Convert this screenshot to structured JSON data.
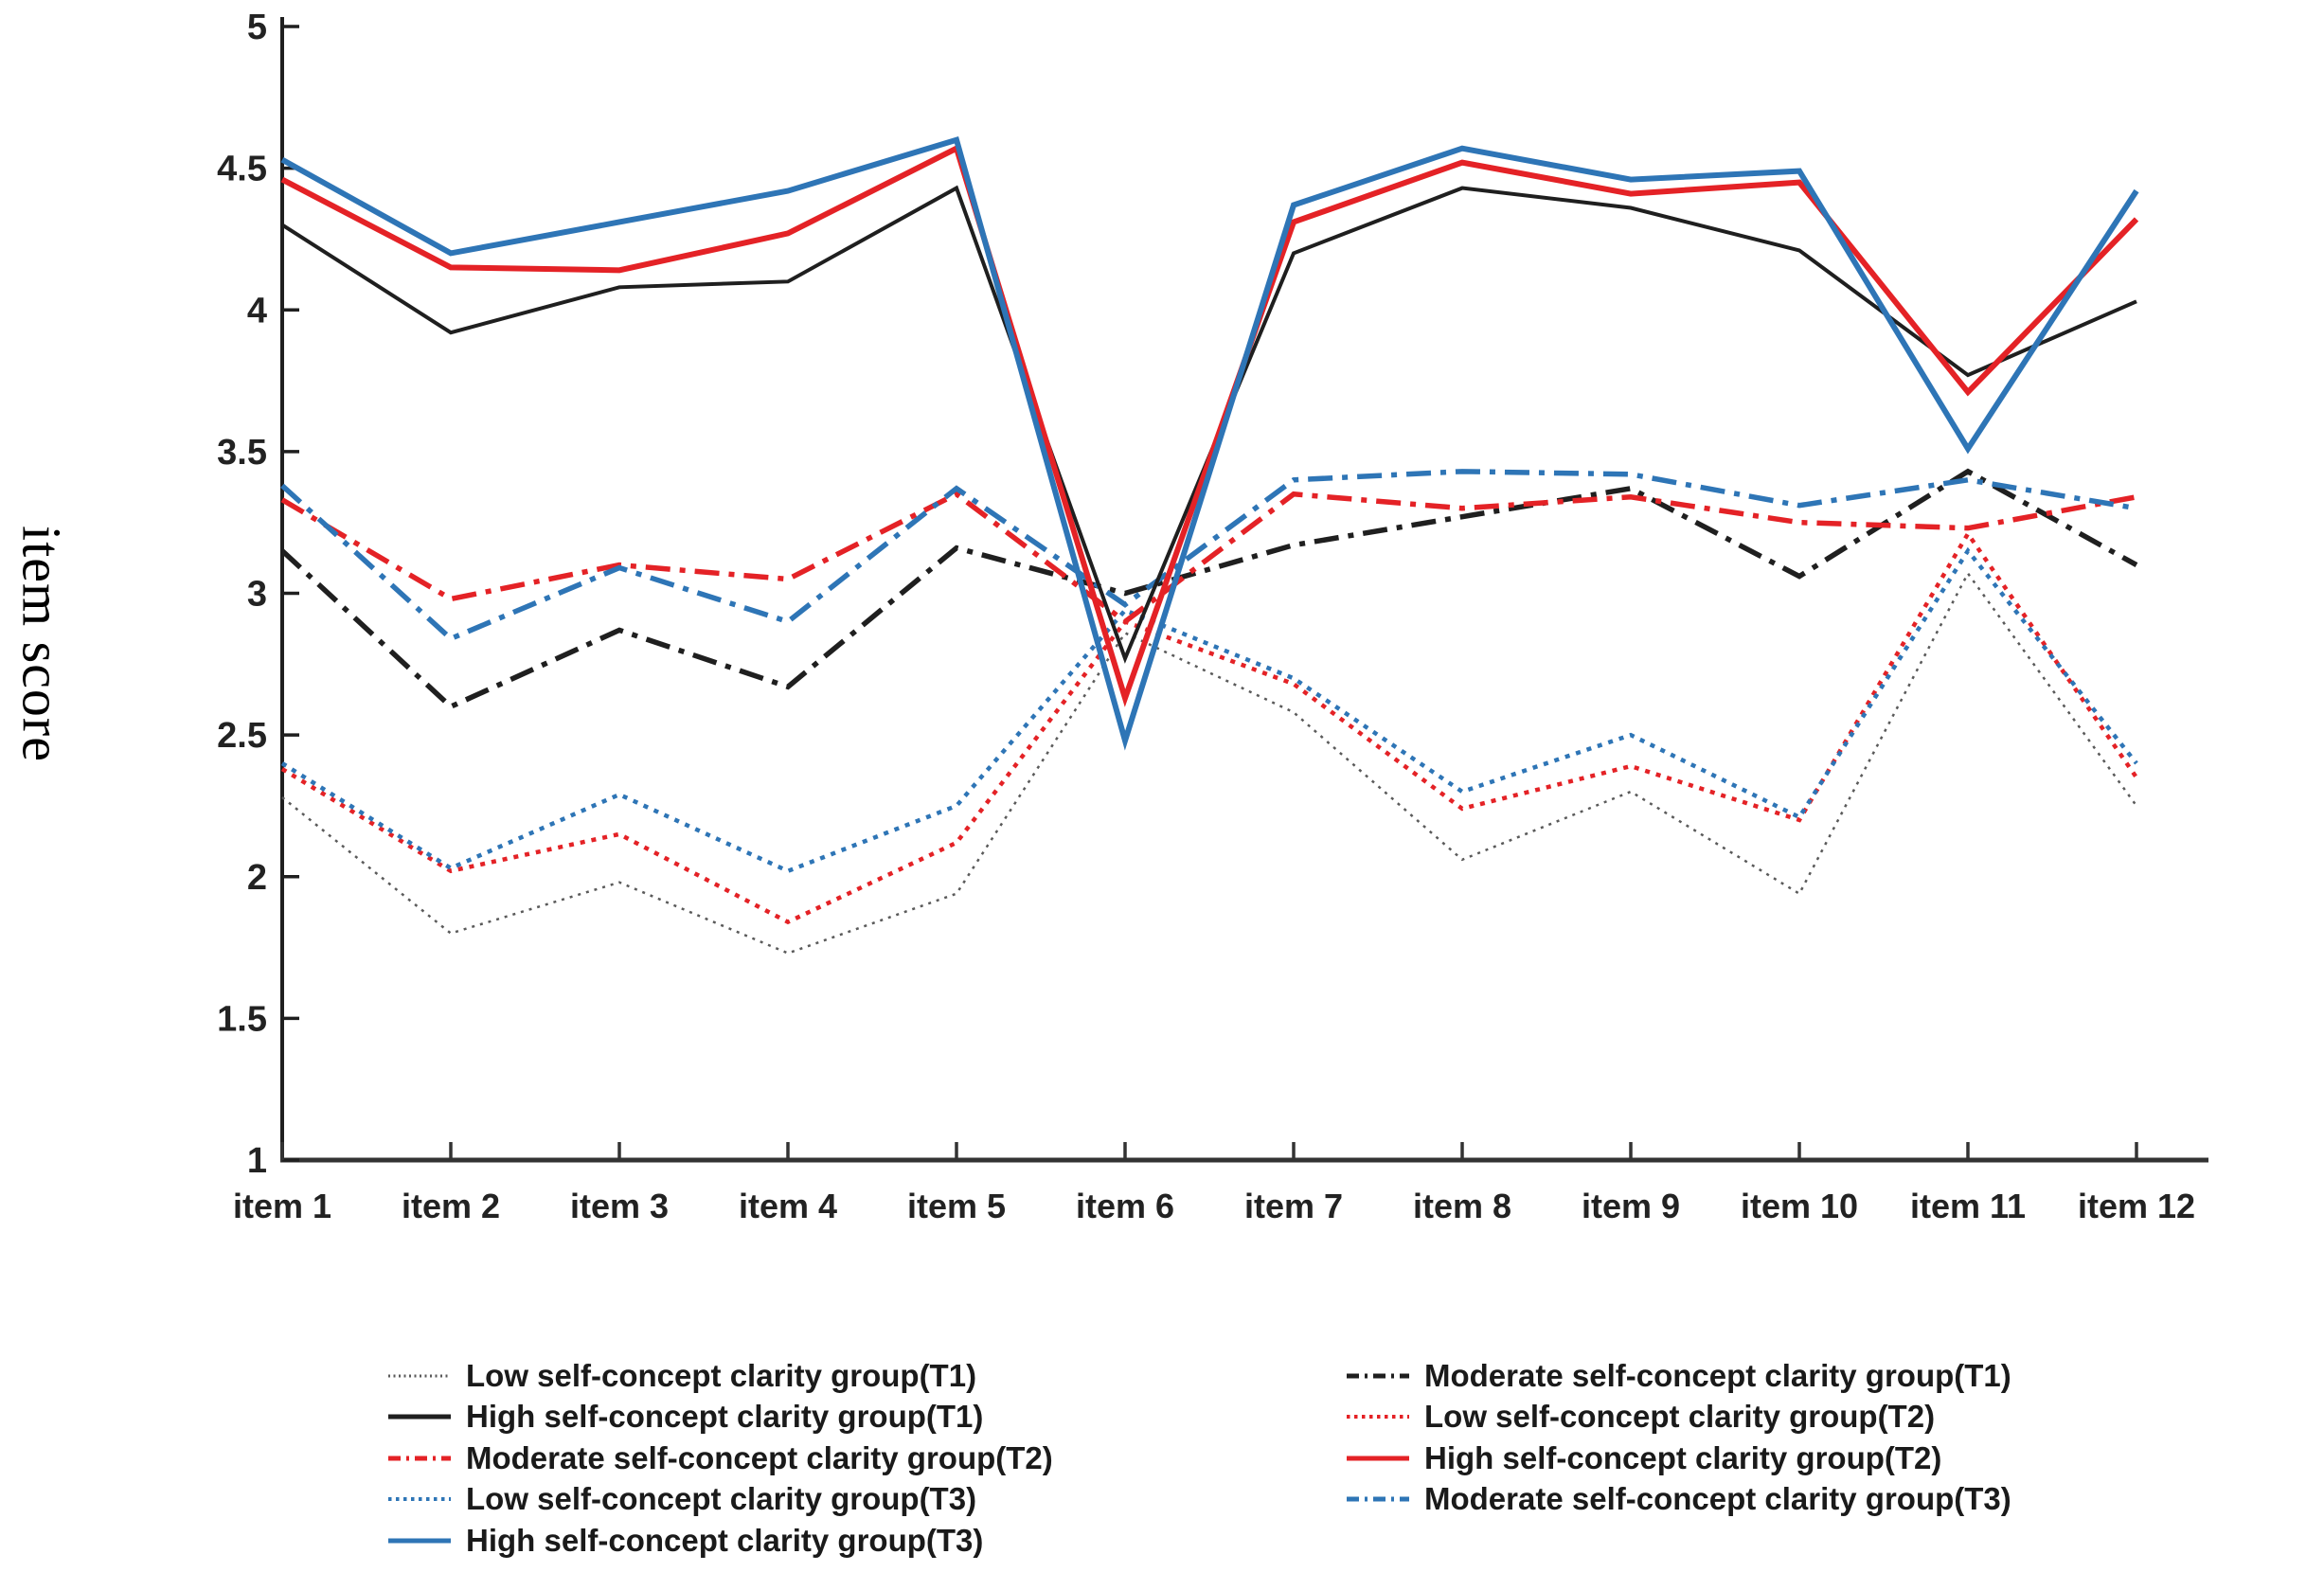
{
  "chart_data": {
    "type": "line",
    "title": "",
    "xlabel": "",
    "ylabel": "item score",
    "ylim": [
      1,
      5
    ],
    "yticks": [
      5,
      4.5,
      4,
      3.5,
      3,
      2.5,
      2,
      1.5,
      1
    ],
    "grid": false,
    "categories": [
      "item 1",
      "item 2",
      "item 3",
      "item 4",
      "item 5",
      "item 6",
      "item 7",
      "item 8",
      "item 9",
      "item 10",
      "item 11",
      "item 12"
    ],
    "series": [
      {
        "name": "Low self-concept clarity group(T1)",
        "color": "#5a5a5a",
        "style": "fine-dot",
        "values": [
          2.28,
          1.8,
          1.98,
          1.73,
          1.94,
          2.86,
          2.58,
          2.06,
          2.3,
          1.94,
          3.07,
          2.25
        ]
      },
      {
        "name": "High self-concept clarity group(T1)",
        "color": "#1f1f1f",
        "style": "solid",
        "values": [
          4.3,
          3.92,
          4.08,
          4.1,
          4.43,
          2.77,
          4.2,
          4.43,
          4.36,
          4.21,
          3.77,
          4.03
        ]
      },
      {
        "name": "Moderate self-concept clarity group(T2)",
        "color": "#e42226",
        "style": "dashdot",
        "values": [
          3.33,
          2.98,
          3.1,
          3.05,
          3.35,
          2.9,
          3.35,
          3.3,
          3.34,
          3.25,
          3.23,
          3.34
        ]
      },
      {
        "name": "Low self-concept clarity group(T3)",
        "color": "#2e75b6",
        "style": "dot",
        "values": [
          2.4,
          2.03,
          2.29,
          2.02,
          2.25,
          2.94,
          2.7,
          2.3,
          2.5,
          2.21,
          3.15,
          2.4
        ]
      },
      {
        "name": "High self-concept clarity group(T3)",
        "color": "#2e75b6",
        "style": "solid",
        "values": [
          4.53,
          4.2,
          4.31,
          4.42,
          4.6,
          2.48,
          4.37,
          4.57,
          4.46,
          4.49,
          3.51,
          4.42
        ]
      },
      {
        "name": "Moderate self-concept clarity group(T1)",
        "color": "#1f1f1f",
        "style": "dashdot",
        "values": [
          3.15,
          2.6,
          2.87,
          2.67,
          3.16,
          3.0,
          3.17,
          3.27,
          3.37,
          3.06,
          3.43,
          3.1
        ]
      },
      {
        "name": "Low self-concept clarity group(T2)",
        "color": "#e42226",
        "style": "dot",
        "values": [
          2.38,
          2.02,
          2.15,
          1.84,
          2.12,
          2.9,
          2.68,
          2.24,
          2.39,
          2.2,
          3.21,
          2.35
        ]
      },
      {
        "name": "High self-concept clarity group(T2)",
        "color": "#e42226",
        "style": "solid",
        "values": [
          4.46,
          4.15,
          4.14,
          4.27,
          4.57,
          2.63,
          4.31,
          4.52,
          4.41,
          4.45,
          3.71,
          4.32
        ]
      },
      {
        "name": "Moderate self-concept clarity group(T3)",
        "color": "#2e75b6",
        "style": "dashdot",
        "values": [
          3.38,
          2.84,
          3.09,
          2.9,
          3.37,
          2.96,
          3.4,
          3.43,
          3.42,
          3.31,
          3.4,
          3.3
        ]
      }
    ],
    "legend": {
      "position": "bottom",
      "columns": [
        [
          0,
          1,
          2,
          3,
          4
        ],
        [
          5,
          6,
          7,
          8
        ]
      ]
    }
  }
}
